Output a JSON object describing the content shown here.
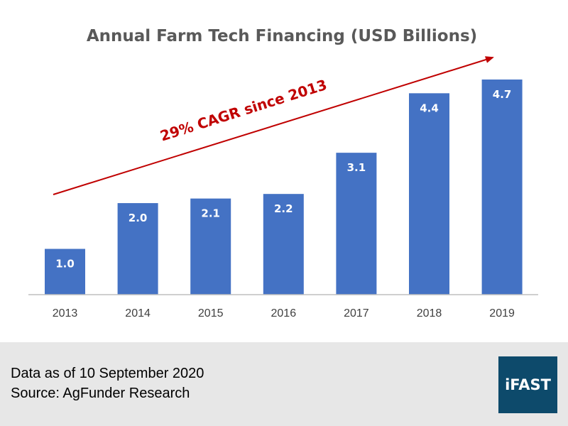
{
  "chart_data": {
    "type": "bar",
    "title": "Annual Farm Tech Financing (USD Billions)",
    "categories": [
      "2013",
      "2014",
      "2015",
      "2016",
      "2017",
      "2018",
      "2019"
    ],
    "values": [
      1.0,
      2.0,
      2.1,
      2.2,
      3.1,
      4.4,
      4.7
    ],
    "value_labels": [
      "1.0",
      "2.0",
      "2.1",
      "2.2",
      "3.1",
      "4.4",
      "4.7"
    ],
    "xlabel": "",
    "ylabel": "",
    "ylim": [
      0,
      4.7
    ],
    "grid": false,
    "legend": "none",
    "annotation": "29% CAGR since 2013",
    "bar_color": "#4472c4",
    "annotation_color": "#c00000"
  },
  "footer": {
    "date_text": "Data as of 10 September 2020",
    "source_text": "Source: AgFunder Research",
    "logo_text": "iFAST",
    "background": "#e7e7e7",
    "logo_color": "#0d4a6b"
  }
}
